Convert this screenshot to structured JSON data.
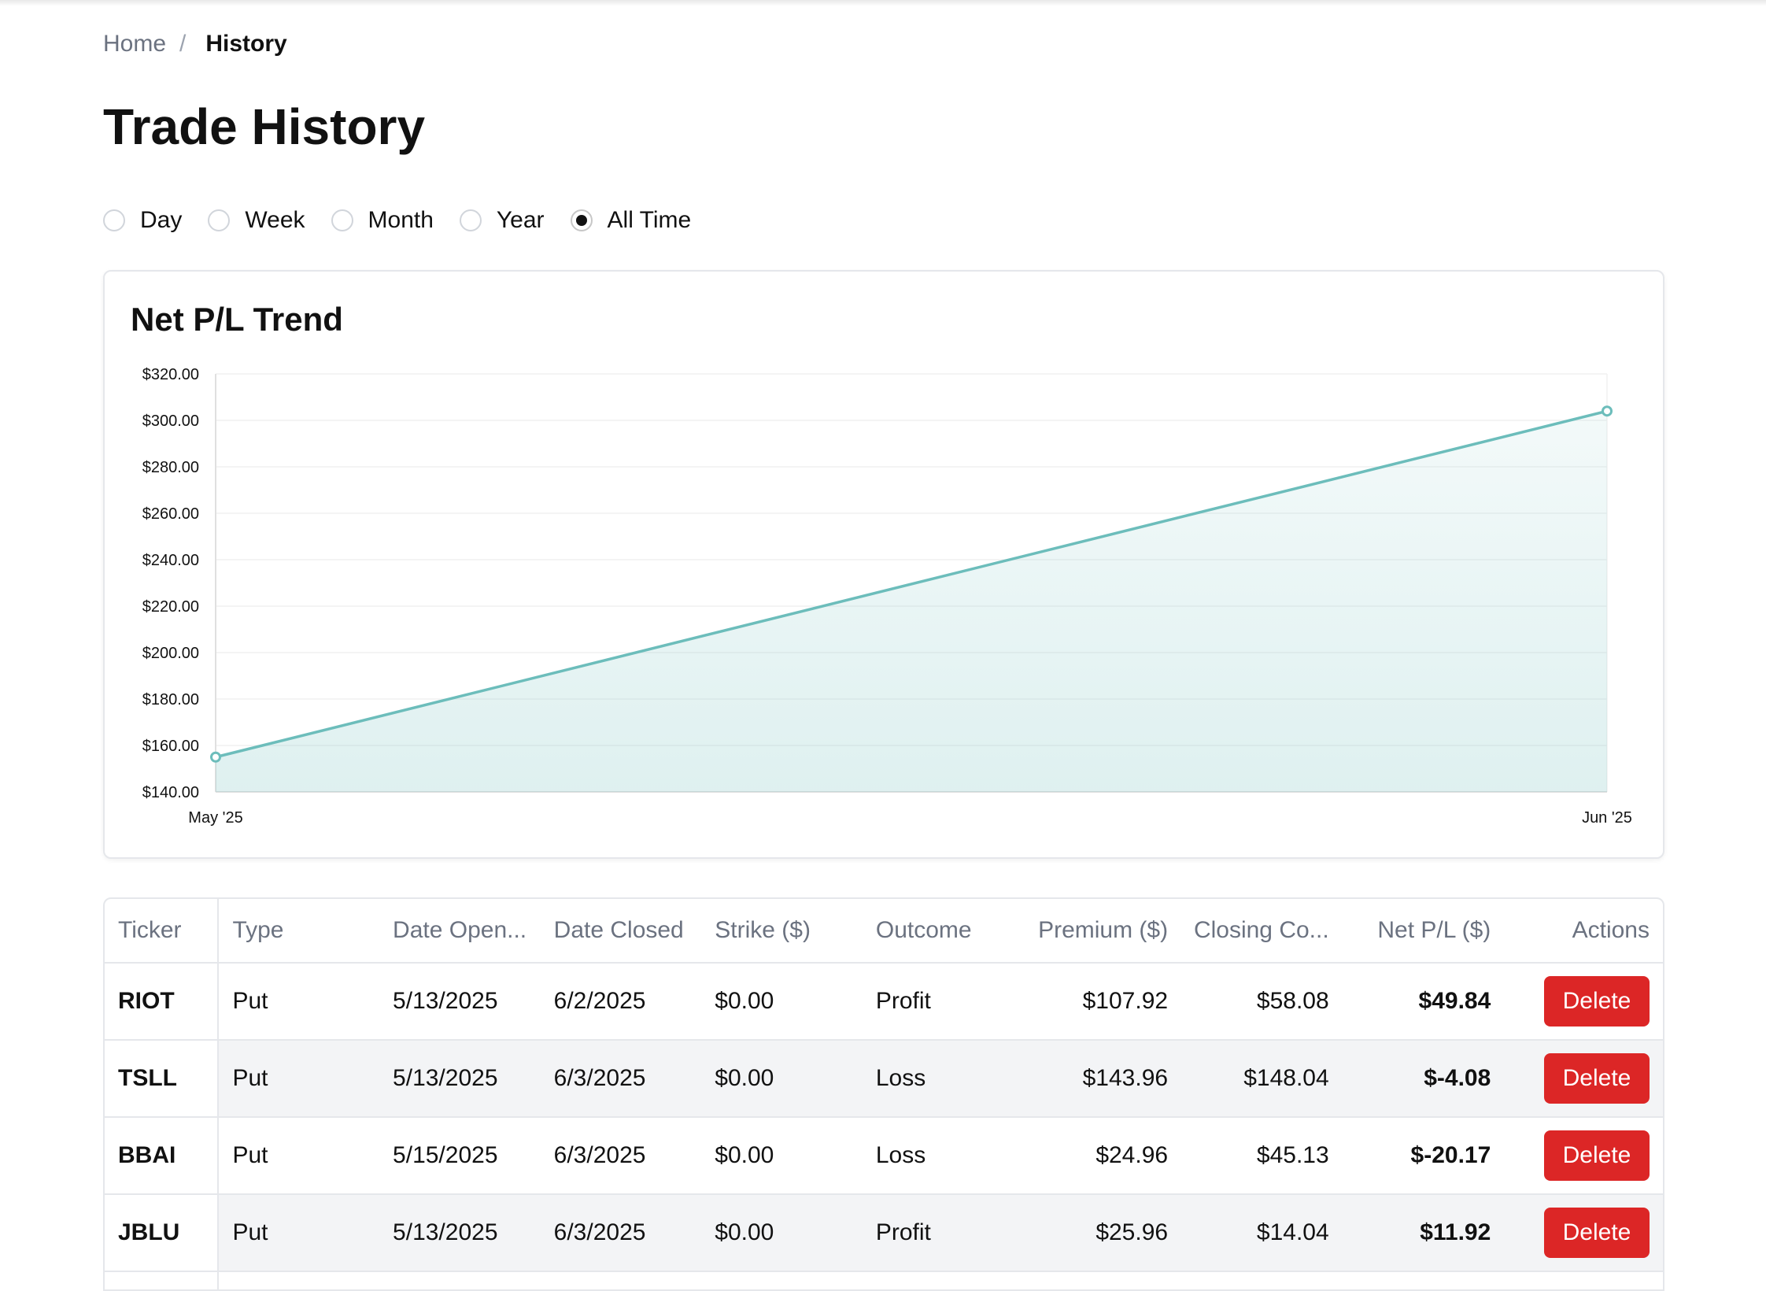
{
  "breadcrumb": {
    "home": "Home",
    "separator": "/",
    "current": "History"
  },
  "page": {
    "title": "Trade History"
  },
  "range_filter": {
    "options": [
      "Day",
      "Week",
      "Month",
      "Year",
      "All Time"
    ],
    "selected": "All Time"
  },
  "chart": {
    "title": "Net P/L Trend",
    "line_color": "#6cbdbb"
  },
  "chart_data": {
    "type": "area",
    "title": "Net P/L Trend",
    "x": [
      "May '25",
      "Jun '25"
    ],
    "values": [
      155,
      304
    ],
    "y_tick_labels": [
      "$320.00",
      "$300.00",
      "$280.00",
      "$260.00",
      "$240.00",
      "$220.00",
      "$200.00",
      "$180.00",
      "$160.00",
      "$140.00"
    ],
    "ylim": [
      140,
      320
    ],
    "grid": true
  },
  "table": {
    "headers": [
      "Ticker",
      "Type",
      "Date Open...",
      "Date Closed",
      "Strike ($)",
      "Outcome",
      "Premium ($)",
      "Closing Co...",
      "Net P/L ($)",
      "Actions"
    ],
    "rows": [
      {
        "ticker": "RIOT",
        "type": "Put",
        "date_opened": "5/13/2025",
        "date_closed": "6/2/2025",
        "strike": "$0.00",
        "outcome": "Profit",
        "premium": "$107.92",
        "closing_cost": "$58.08",
        "net_pl": "$49.84"
      },
      {
        "ticker": "TSLL",
        "type": "Put",
        "date_opened": "5/13/2025",
        "date_closed": "6/3/2025",
        "strike": "$0.00",
        "outcome": "Loss",
        "premium": "$143.96",
        "closing_cost": "$148.04",
        "net_pl": "$-4.08"
      },
      {
        "ticker": "BBAI",
        "type": "Put",
        "date_opened": "5/15/2025",
        "date_closed": "6/3/2025",
        "strike": "$0.00",
        "outcome": "Loss",
        "premium": "$24.96",
        "closing_cost": "$45.13",
        "net_pl": "$-20.17"
      },
      {
        "ticker": "JBLU",
        "type": "Put",
        "date_opened": "5/13/2025",
        "date_closed": "6/3/2025",
        "strike": "$0.00",
        "outcome": "Profit",
        "premium": "$25.96",
        "closing_cost": "$14.04",
        "net_pl": "$11.92"
      }
    ],
    "delete_label": "Delete",
    "delete_color": "#dc2626"
  }
}
